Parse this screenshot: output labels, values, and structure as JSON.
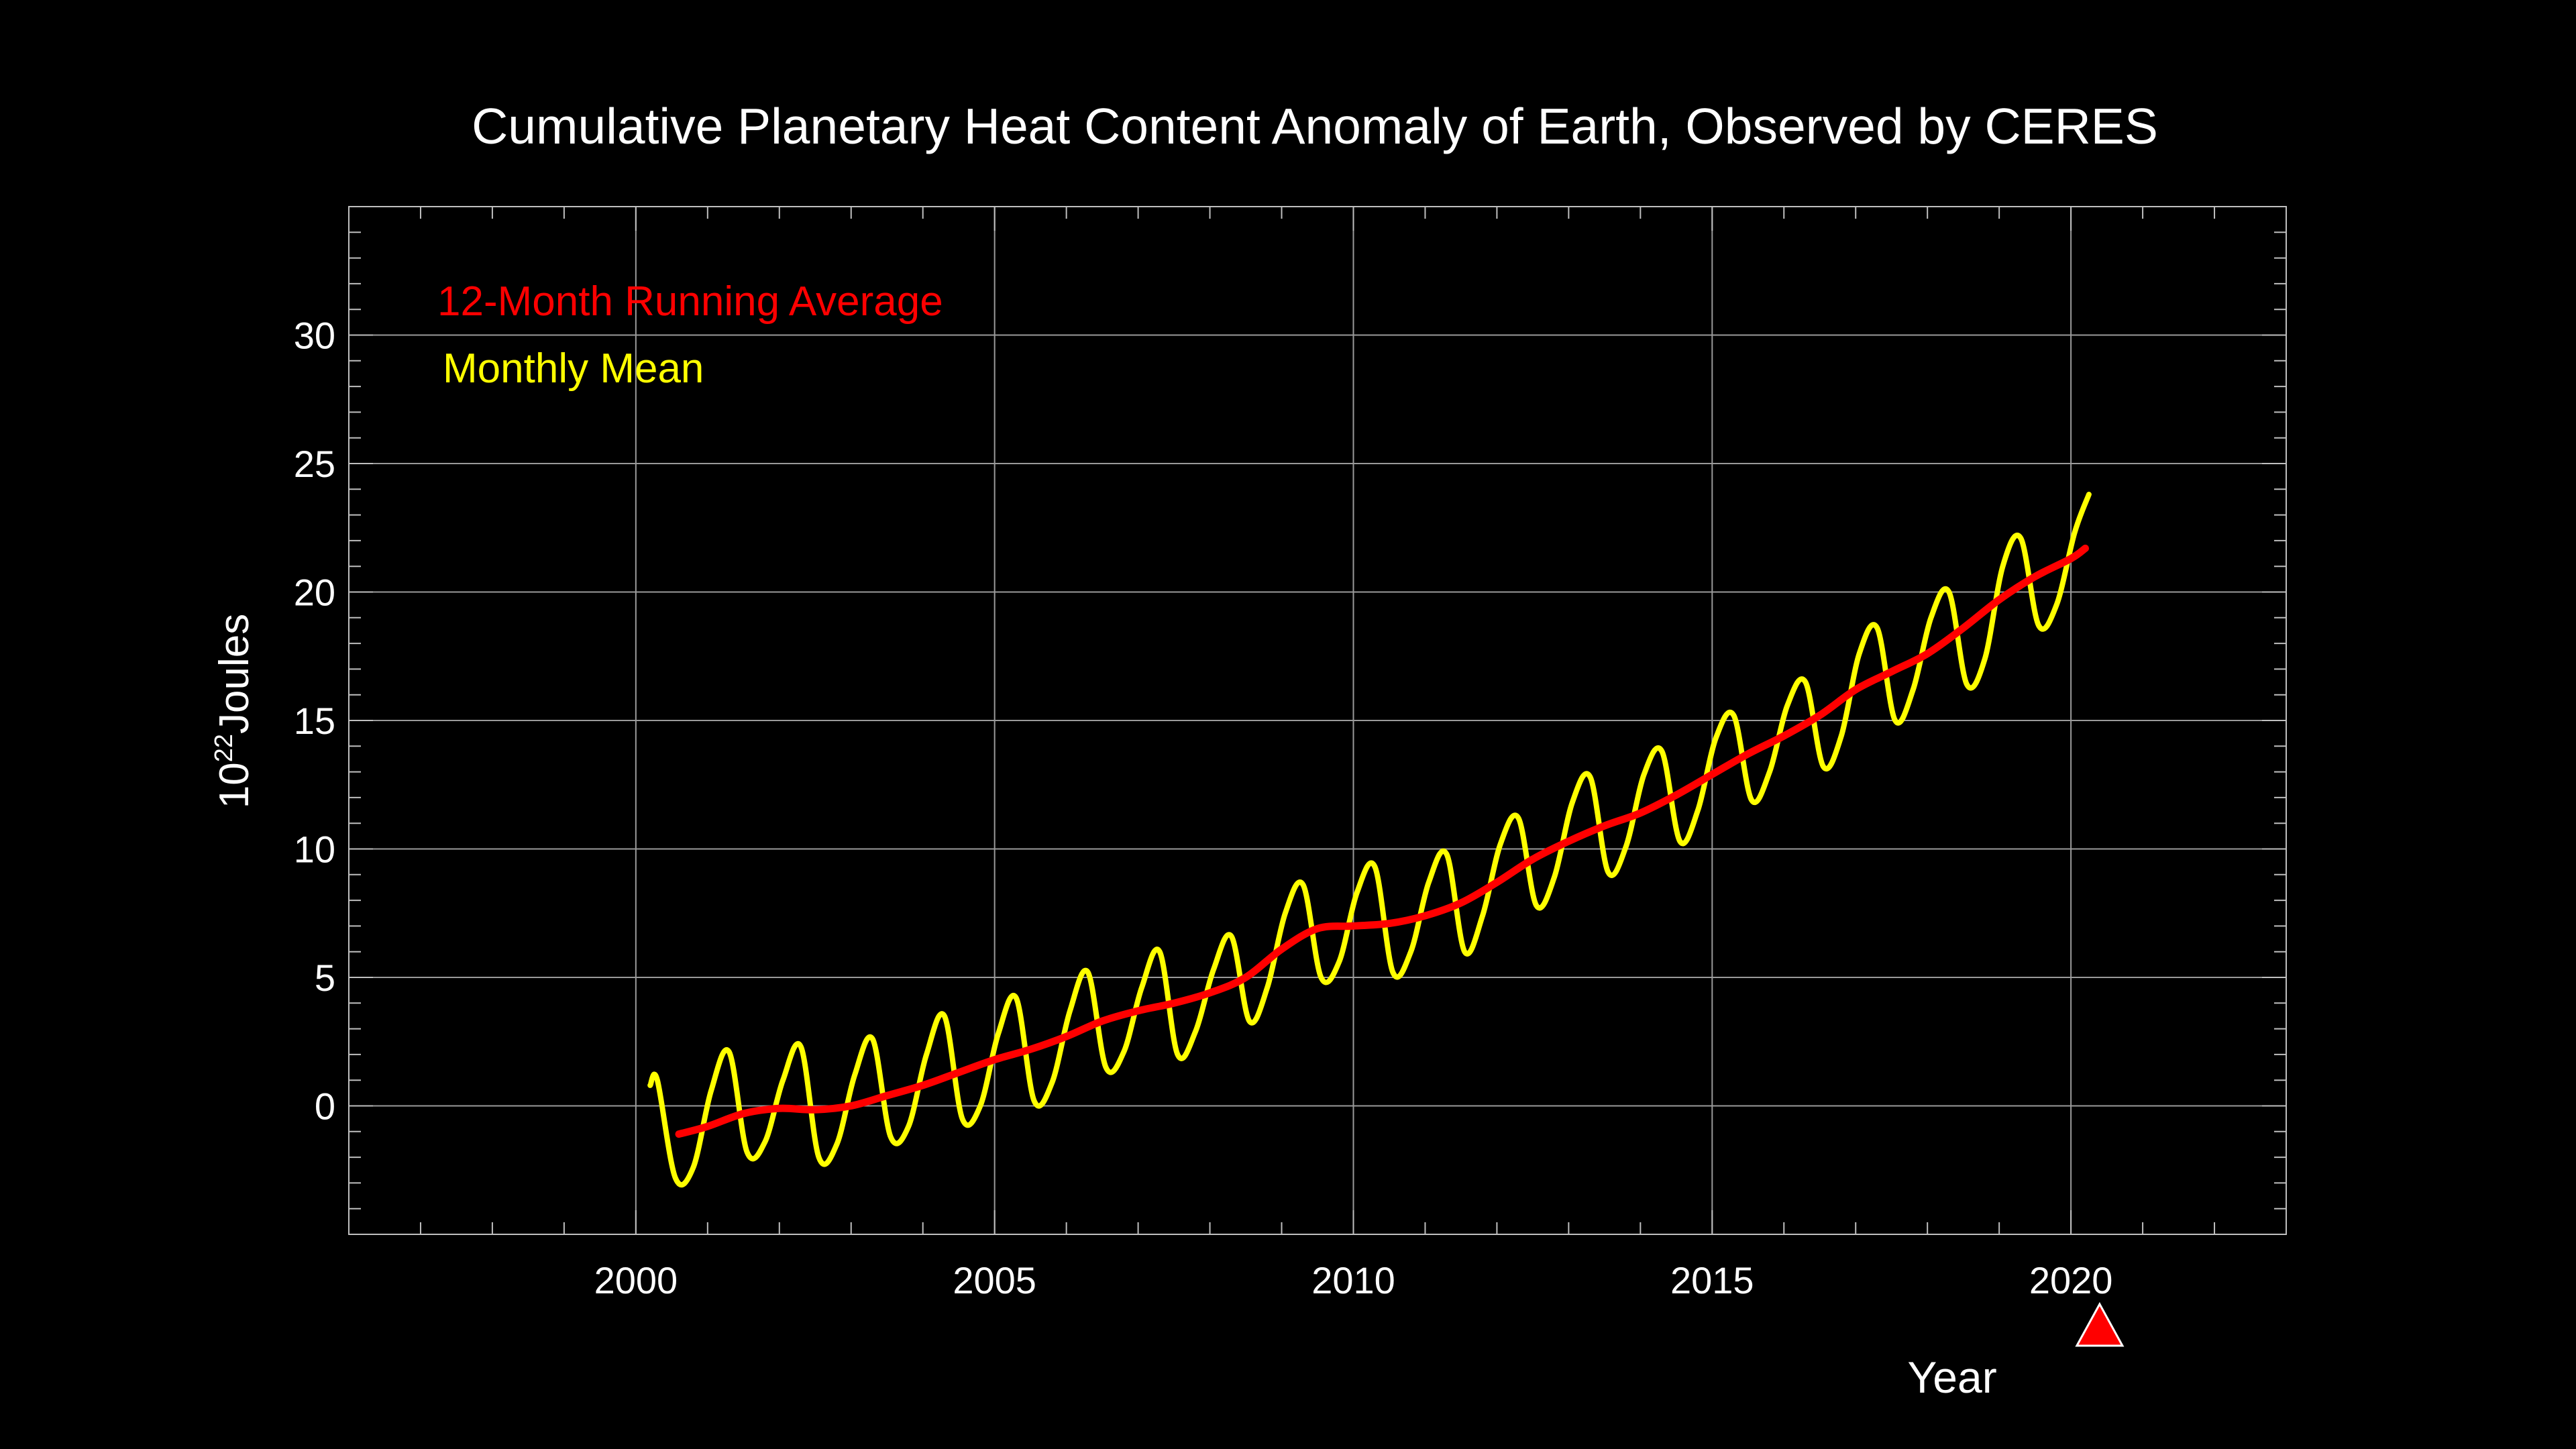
{
  "chart_data": {
    "type": "line",
    "title": "Cumulative Planetary Heat Content Anomaly of Earth, Observed by CERES",
    "xlabel": "Year",
    "ylabel_base": "10",
    "ylabel_exponent": "22",
    "ylabel_unit": "Joules",
    "xlim": [
      1996,
      2023
    ],
    "ylim": [
      -5,
      35
    ],
    "x_ticks": [
      2000,
      2005,
      2010,
      2015,
      2020
    ],
    "x_tick_labels": [
      "2000",
      "2005",
      "2010",
      "2015",
      "2020"
    ],
    "y_ticks": [
      0,
      5,
      10,
      15,
      20,
      25,
      30
    ],
    "y_tick_labels": [
      "0",
      "5",
      "10",
      "15",
      "20",
      "25",
      "30"
    ],
    "grid": true,
    "legend_position": "top-left",
    "marker": {
      "shape": "triangle",
      "x": 2020.4,
      "color": "#ff0000"
    },
    "series": [
      {
        "name": "12-Month Running Average",
        "color": "#ff0000",
        "x": [
          2000.6,
          2001.0,
          2001.5,
          2002.0,
          2002.5,
          2003.0,
          2003.5,
          2004.0,
          2004.5,
          2005.0,
          2005.5,
          2006.0,
          2006.5,
          2007.0,
          2007.5,
          2008.0,
          2008.5,
          2009.0,
          2009.5,
          2010.0,
          2010.5,
          2011.0,
          2011.5,
          2012.0,
          2012.5,
          2013.0,
          2013.5,
          2014.0,
          2014.5,
          2015.0,
          2015.5,
          2016.0,
          2016.5,
          2017.0,
          2017.5,
          2018.0,
          2018.5,
          2019.0,
          2019.5,
          2020.0,
          2020.2
        ],
        "values": [
          -1.1,
          -0.8,
          -0.3,
          -0.1,
          -0.15,
          0.0,
          0.4,
          0.8,
          1.3,
          1.8,
          2.2,
          2.7,
          3.3,
          3.7,
          4.0,
          4.4,
          5.0,
          6.1,
          6.9,
          7.0,
          7.1,
          7.4,
          7.9,
          8.7,
          9.6,
          10.3,
          10.9,
          11.4,
          12.1,
          12.9,
          13.7,
          14.4,
          15.2,
          16.2,
          16.9,
          17.6,
          18.6,
          19.7,
          20.6,
          21.3,
          21.7
        ]
      },
      {
        "name": "Monthly Mean",
        "color": "#ffff00",
        "x": [
          2000.2,
          2000.3,
          2000.55,
          2000.8,
          2001.05,
          2001.3,
          2001.55,
          2001.8,
          2002.05,
          2002.3,
          2002.55,
          2002.8,
          2003.05,
          2003.3,
          2003.55,
          2003.8,
          2004.05,
          2004.3,
          2004.55,
          2004.8,
          2005.05,
          2005.3,
          2005.55,
          2005.8,
          2006.05,
          2006.3,
          2006.55,
          2006.8,
          2007.05,
          2007.3,
          2007.55,
          2007.8,
          2008.05,
          2008.3,
          2008.55,
          2008.8,
          2009.05,
          2009.3,
          2009.55,
          2009.8,
          2010.05,
          2010.3,
          2010.55,
          2010.8,
          2011.05,
          2011.3,
          2011.55,
          2011.8,
          2012.05,
          2012.3,
          2012.55,
          2012.8,
          2013.05,
          2013.3,
          2013.55,
          2013.8,
          2014.05,
          2014.3,
          2014.55,
          2014.8,
          2015.05,
          2015.3,
          2015.55,
          2015.8,
          2016.05,
          2016.3,
          2016.55,
          2016.8,
          2017.05,
          2017.3,
          2017.55,
          2017.8,
          2018.05,
          2018.3,
          2018.55,
          2018.8,
          2019.05,
          2019.3,
          2019.55,
          2019.8,
          2020.05,
          2020.25
        ],
        "values": [
          0.8,
          1.0,
          -2.8,
          -2.4,
          0.6,
          2.1,
          -1.8,
          -1.4,
          1.0,
          2.3,
          -2.0,
          -1.5,
          1.2,
          2.6,
          -1.2,
          -0.8,
          2.0,
          3.5,
          -0.5,
          0.0,
          2.8,
          4.2,
          0.2,
          0.9,
          3.7,
          5.2,
          1.5,
          2.1,
          4.6,
          6.0,
          2.0,
          2.9,
          5.3,
          6.6,
          3.3,
          4.6,
          7.5,
          8.6,
          5.0,
          5.6,
          8.3,
          9.3,
          5.2,
          6.0,
          8.7,
          9.8,
          6.0,
          7.4,
          10.2,
          11.2,
          7.8,
          8.9,
          11.8,
          12.8,
          9.1,
          10.1,
          12.9,
          13.8,
          10.3,
          11.5,
          14.3,
          15.2,
          11.9,
          13.0,
          15.6,
          16.5,
          13.2,
          14.4,
          17.6,
          18.6,
          15.0,
          16.2,
          19.0,
          20.0,
          16.4,
          17.4,
          21.0,
          22.1,
          18.7,
          19.5,
          22.3,
          23.8
        ]
      }
    ]
  }
}
